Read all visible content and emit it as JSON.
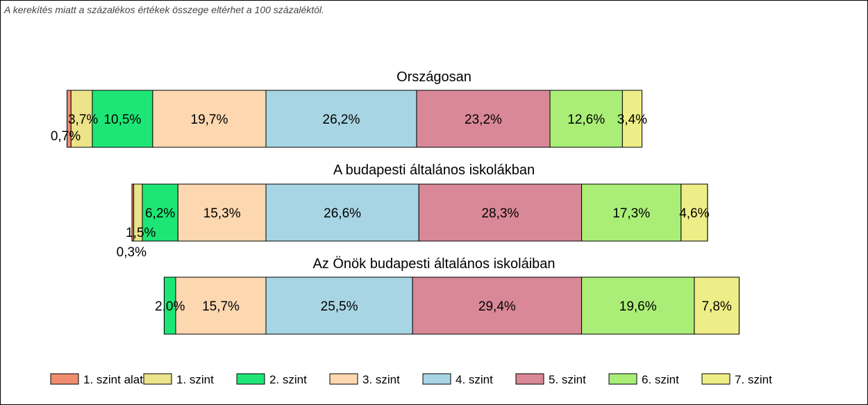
{
  "note": "A kerekítés miatt a  százalékos értékek összege eltérhet a 100 százaléktól.",
  "chart_data": {
    "type": "bar",
    "orientation": "horizontal-stacked-diverging",
    "levels": [
      "1. szint alatti",
      "1. szint",
      "2. szint",
      "3. szint",
      "4. szint",
      "5. szint",
      "6. szint",
      "7. szint"
    ],
    "colors": [
      "#f08c6e",
      "#ece38a",
      "#1ee676",
      "#fdd7b0",
      "#a8d5e4",
      "#d98898",
      "#aaee77",
      "#eeee88"
    ],
    "center_split_after_level": 3,
    "charts": [
      {
        "title": "Országosan",
        "values": [
          0.7,
          3.7,
          10.5,
          19.7,
          26.2,
          23.2,
          12.6,
          3.4
        ],
        "labels": [
          "0,7%",
          "3,7%",
          "10,5%",
          "19,7%",
          "26,2%",
          "23,2%",
          "12,6%",
          "3,4%"
        ]
      },
      {
        "title": "A budapesti általános iskolákban",
        "values": [
          0.3,
          1.5,
          6.2,
          15.3,
          26.6,
          28.3,
          17.3,
          4.6
        ],
        "labels": [
          "0,3%",
          "1,5%",
          "6,2%",
          "15,3%",
          "26,6%",
          "28,3%",
          "17,3%",
          "4,6%"
        ]
      },
      {
        "title": "Az Önök budapesti általános iskoláiban",
        "values": [
          0,
          0,
          2.0,
          15.7,
          25.5,
          29.4,
          19.6,
          7.8
        ],
        "labels": [
          "",
          "",
          "2,0%",
          "15,7%",
          "25,5%",
          "29,4%",
          "19,6%",
          "7,8%"
        ]
      }
    ],
    "legend": [
      "1. szint alatti",
      "1. szint",
      "2. szint",
      "3. szint",
      "4. szint",
      "5. szint",
      "6. szint",
      "7. szint"
    ],
    "legend_position": "bottom"
  }
}
